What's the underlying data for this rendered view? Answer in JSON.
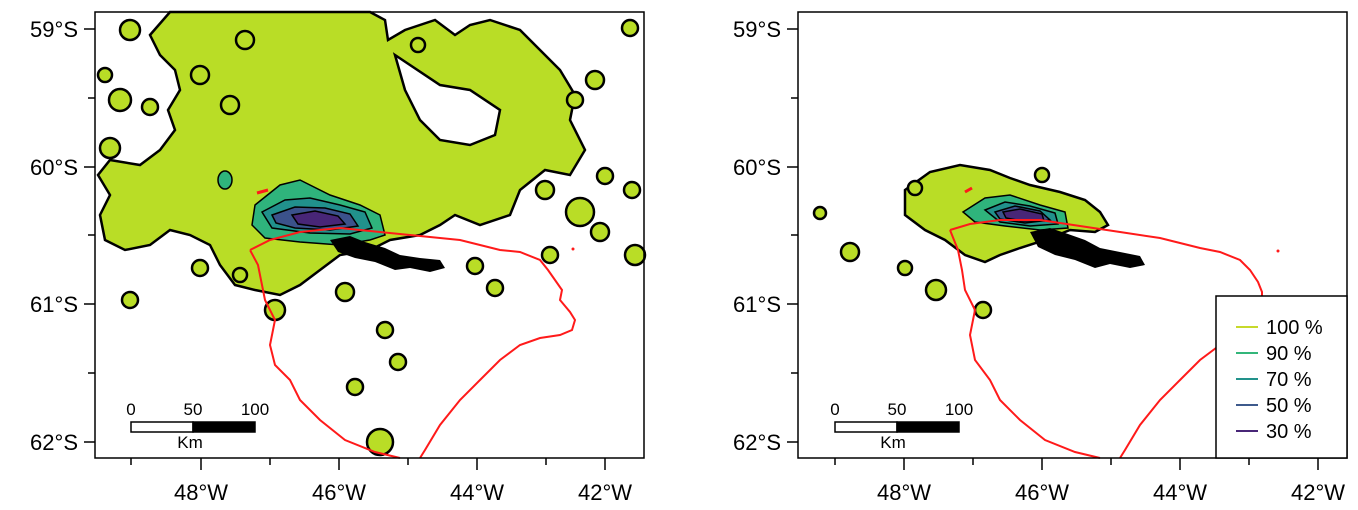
{
  "colors": {
    "fill_100": "#b9dd26",
    "fill_90": "#2fb47c",
    "fill_70": "#21918c",
    "fill_50": "#3b528b",
    "fill_30": "#482677",
    "island_outline": "#ff1a1a",
    "contour": "#000000",
    "line_100": "#c7d92b",
    "line_90": "#33b67a",
    "line_70": "#22928b",
    "line_50": "#3e5a8c",
    "line_30": "#482677"
  },
  "panels": [
    {
      "y_ticks": [
        "59°S",
        "60°S",
        "61°S",
        "62°S"
      ],
      "x_ticks": [
        "48°W",
        "46°W",
        "44°W",
        "42°W"
      ],
      "scalebar": {
        "labels": [
          "0",
          "50",
          "100"
        ],
        "unit": "Km"
      }
    },
    {
      "y_ticks": [
        "59°S",
        "60°S",
        "61°S",
        "62°S"
      ],
      "x_ticks": [
        "48°W",
        "46°W",
        "44°W",
        "42°W"
      ],
      "scalebar": {
        "labels": [
          "0",
          "50",
          "100"
        ],
        "unit": "Km"
      },
      "legend": [
        {
          "label": "100 %",
          "color_key": "line_100"
        },
        {
          "label": "90 %",
          "color_key": "line_90"
        },
        {
          "label": "70 %",
          "color_key": "line_70"
        },
        {
          "label": "50 %",
          "color_key": "line_50"
        },
        {
          "label": "30 %",
          "color_key": "line_30"
        }
      ]
    }
  ]
}
